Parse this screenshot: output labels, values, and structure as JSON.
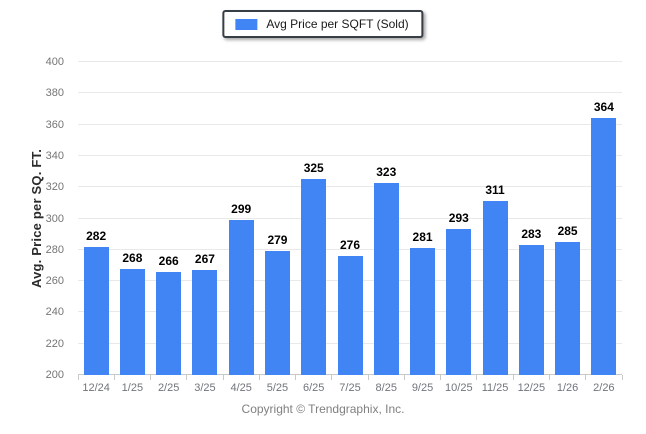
{
  "legend": {
    "label": "Avg Price per SQFT (Sold)"
  },
  "footer": {
    "copyright": "Copyright © Trendgraphix, Inc."
  },
  "colors": {
    "bar": "#4184F3",
    "gridline": "#e9e9e9",
    "axis_line": "#c9c9c9",
    "tick_text": "#757575",
    "value_text": "#000000",
    "legend_border": "#383e46"
  },
  "chart_data": {
    "type": "bar",
    "title": "Avg Price per SQFT (Sold)",
    "legend_entries": [
      "Avg Price per SQFT (Sold)"
    ],
    "legend_position": "top-center",
    "categories": [
      "12/24",
      "1/25",
      "2/25",
      "3/25",
      "4/25",
      "5/25",
      "6/25",
      "7/25",
      "8/25",
      "9/25",
      "10/25",
      "11/25",
      "12/25",
      "1/26",
      "2/26"
    ],
    "values": [
      282,
      268,
      266,
      267,
      299,
      279,
      325,
      276,
      323,
      281,
      293,
      311,
      283,
      285,
      364
    ],
    "xlabel": "",
    "ylabel": "Avg. Price per SQ. FT.",
    "ylim": [
      200,
      400
    ],
    "ytick_step": 20,
    "yticks": [
      200,
      220,
      240,
      260,
      280,
      300,
      320,
      340,
      360,
      380,
      400
    ],
    "grid": true
  }
}
